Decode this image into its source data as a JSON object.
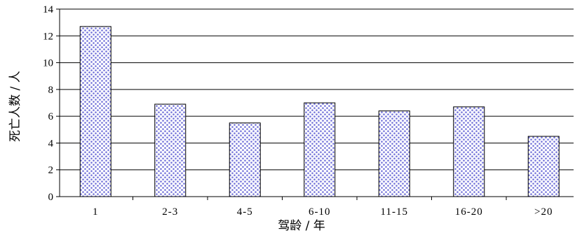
{
  "chart_data": {
    "type": "bar",
    "categories": [
      "1",
      "2-3",
      "4-5",
      "6-10",
      "11-15",
      "16-20",
      ">20"
    ],
    "values": [
      12.7,
      6.9,
      5.5,
      7.0,
      6.4,
      6.7,
      4.5
    ],
    "xlabel": "驾龄 / 年",
    "ylabel": "死亡人数 / 人",
    "ylim": [
      0,
      14
    ],
    "yticks": [
      0,
      2,
      4,
      6,
      8,
      10,
      12,
      14
    ],
    "grid": true,
    "colors": {
      "bar_pattern_dots": "#6f6fd8",
      "bar_background": "#ffffff",
      "bar_outline": "#000000",
      "gridlines": "#000000",
      "axes": "#000000"
    }
  }
}
